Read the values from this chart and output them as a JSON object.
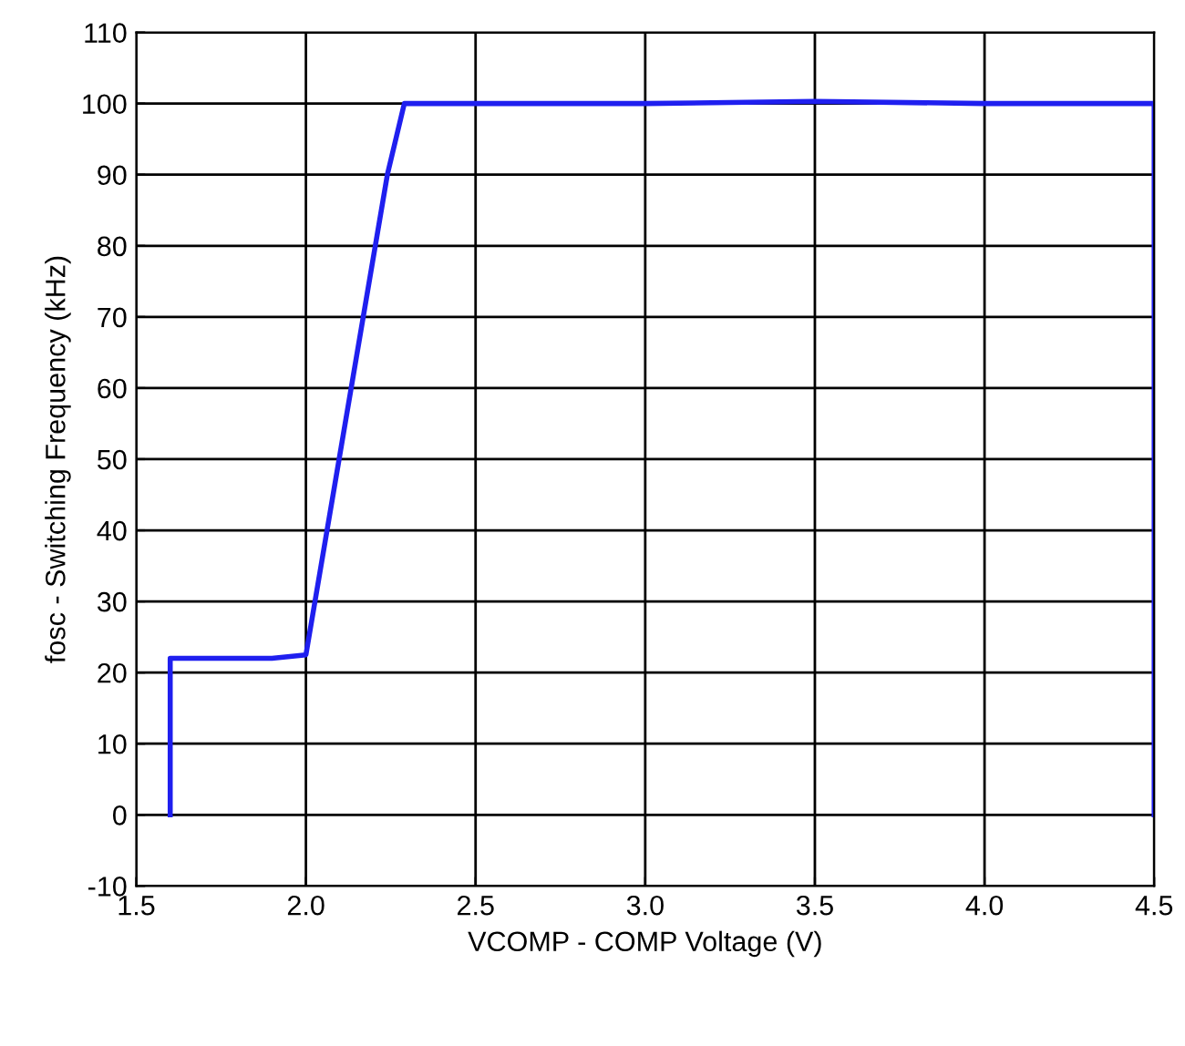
{
  "chart_data": {
    "type": "line",
    "xlabel": "VCOMP - COMP Voltage (V)",
    "ylabel": "fosc - Switching Frequency (kHz)",
    "series": [
      {
        "color": "#1f1fef",
        "x": [
          1.6,
          1.6,
          1.8,
          1.9,
          2.0,
          2.24,
          2.29,
          3.0,
          3.5,
          4.0,
          4.5,
          4.5
        ],
        "values": [
          0,
          22,
          22,
          22,
          22.5,
          90,
          100,
          100,
          100.3,
          100,
          100,
          0
        ]
      }
    ],
    "xlim": [
      1.5,
      4.5
    ],
    "xticks": [
      1.5,
      {
        "value": 2,
        "label": "2.0"
      },
      2.5,
      {
        "value": 3,
        "label": "3.0"
      },
      3.5,
      {
        "value": 4,
        "label": "4.0"
      },
      4.5
    ],
    "ylim": [
      -10,
      110
    ],
    "yticks": [
      -10,
      0,
      10,
      20,
      30,
      40,
      50,
      60,
      70,
      80,
      90,
      100,
      110
    ],
    "grid": true,
    "marker": "none",
    "line_style": "solid"
  }
}
